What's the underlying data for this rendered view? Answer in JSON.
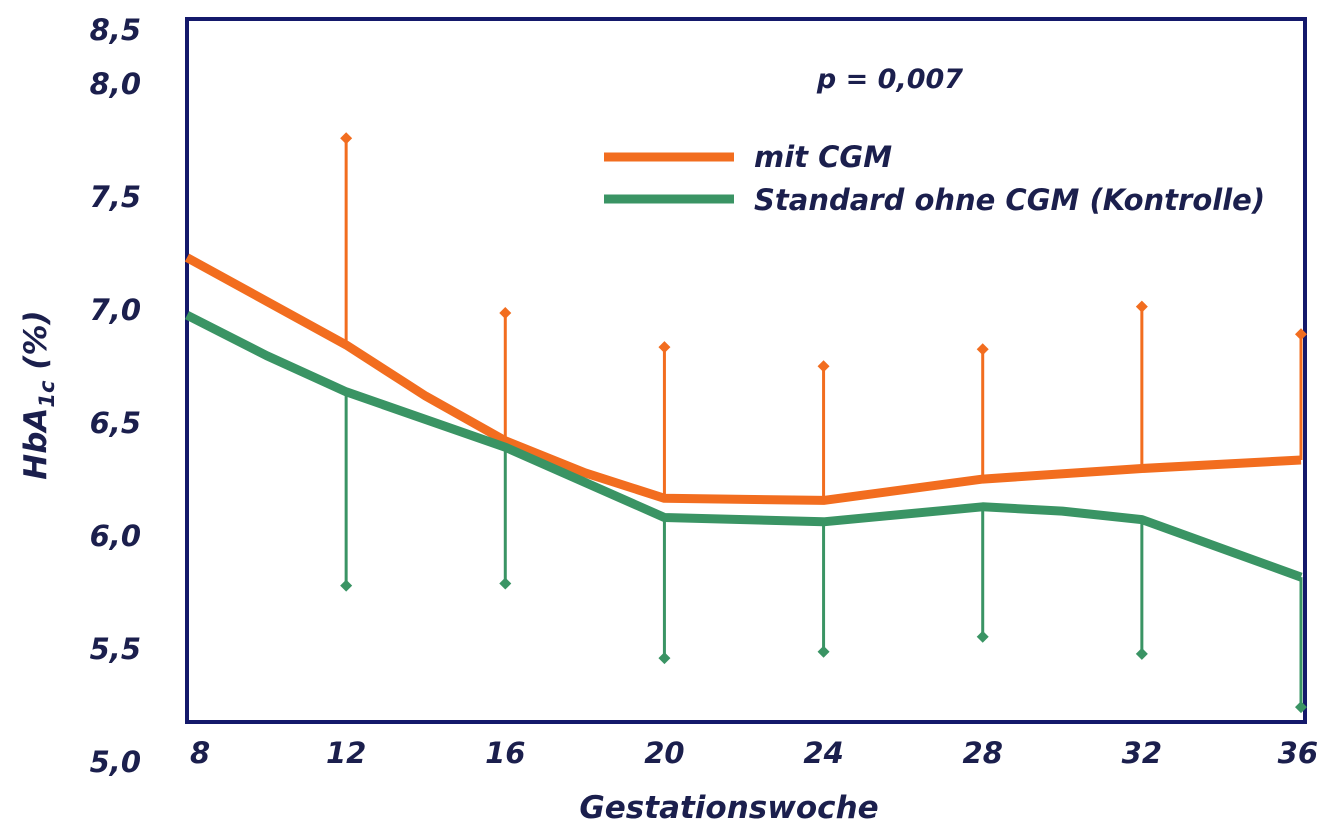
{
  "chart_data": {
    "type": "line",
    "title": "",
    "xlabel": "Gestationswoche",
    "ylabel_main": "HbA",
    "ylabel_sub": "1c",
    "ylabel_unit": " (%)",
    "x": [
      8,
      12,
      16,
      20,
      24,
      28,
      32,
      36
    ],
    "x_tick_labels": [
      "8",
      "12",
      "16",
      "20",
      "24",
      "28",
      "32",
      "36"
    ],
    "y_tick_labels": [
      "5,0",
      "5,5",
      "6,0",
      "6,5",
      "7,0",
      "7,5",
      "8,0",
      "8,5"
    ],
    "xlim": [
      8,
      36
    ],
    "ylim": [
      5.2,
      8.5
    ],
    "annotation": "p = 0,007",
    "legend_position": "top-right",
    "series": [
      {
        "name": "mit CGM",
        "color": "#f26d1f",
        "line": [
          [
            8,
            7.38
          ],
          [
            12,
            6.97
          ],
          [
            14,
            6.73
          ],
          [
            16,
            6.52
          ],
          [
            18,
            6.37
          ],
          [
            20,
            6.25
          ],
          [
            24,
            6.24
          ],
          [
            28,
            6.34
          ],
          [
            32,
            6.39
          ],
          [
            36,
            6.43
          ]
        ],
        "error_bars": [
          {
            "x": 12,
            "from": 6.97,
            "to": 7.94
          },
          {
            "x": 16,
            "from": 6.52,
            "to": 7.12
          },
          {
            "x": 20,
            "from": 6.25,
            "to": 6.96
          },
          {
            "x": 24,
            "from": 6.24,
            "to": 6.87
          },
          {
            "x": 28,
            "from": 6.34,
            "to": 6.95
          },
          {
            "x": 32,
            "from": 6.39,
            "to": 7.15
          },
          {
            "x": 36,
            "from": 6.43,
            "to": 7.02
          }
        ]
      },
      {
        "name": "Standard ohne CGM (Kontrolle)",
        "color": "#3a9464",
        "line": [
          [
            8,
            7.11
          ],
          [
            10,
            6.92
          ],
          [
            12,
            6.75
          ],
          [
            16,
            6.49
          ],
          [
            20,
            6.16
          ],
          [
            24,
            6.14
          ],
          [
            28,
            6.21
          ],
          [
            30,
            6.19
          ],
          [
            32,
            6.15
          ],
          [
            36,
            5.88
          ]
        ],
        "error_bars": [
          {
            "x": 12,
            "from": 6.75,
            "to": 5.84
          },
          {
            "x": 16,
            "from": 6.49,
            "to": 5.85
          },
          {
            "x": 20,
            "from": 6.16,
            "to": 5.5
          },
          {
            "x": 24,
            "from": 6.14,
            "to": 5.53
          },
          {
            "x": 28,
            "from": 6.21,
            "to": 5.6
          },
          {
            "x": 32,
            "from": 6.15,
            "to": 5.52
          },
          {
            "x": 36,
            "from": 5.88,
            "to": 5.27
          }
        ]
      }
    ]
  }
}
